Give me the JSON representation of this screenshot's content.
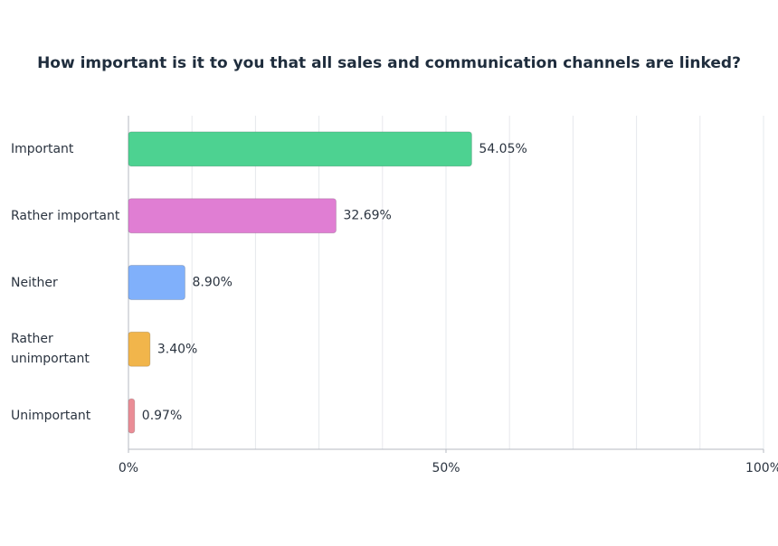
{
  "chart_data": {
    "type": "bar",
    "orientation": "horizontal",
    "title": "How important is it to you that all sales and communication channels are linked?",
    "categories": [
      "Important",
      "Rather important",
      "Neither",
      "Rather unimportant",
      "Unimportant"
    ],
    "values": [
      54.05,
      32.69,
      8.9,
      3.4,
      0.97
    ],
    "value_labels": [
      "54.05%",
      "32.69%",
      "8.90%",
      "3.40%",
      "0.97%"
    ],
    "colors": [
      "#4dd291",
      "#e07ed3",
      "#80b0fb",
      "#f1b54b",
      "#ea8d96"
    ],
    "xlim": [
      0,
      100
    ],
    "xticks": [
      {
        "value": 0,
        "label": "0%"
      },
      {
        "value": 50,
        "label": "50%"
      },
      {
        "value": 100,
        "label": "100%"
      }
    ],
    "grid_xticks": [
      0,
      10,
      20,
      30,
      40,
      50,
      60,
      70,
      80,
      90,
      100
    ],
    "grid": true
  }
}
